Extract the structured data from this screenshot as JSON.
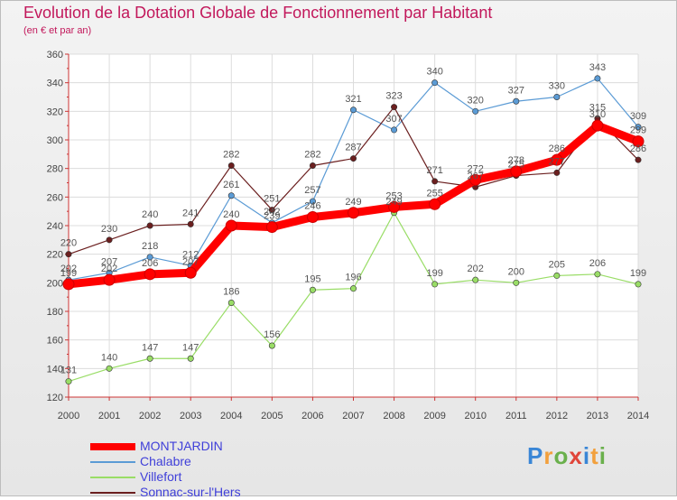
{
  "chart_data": {
    "type": "line",
    "title": "Evolution de la Dotation Globale de Fonctionnement par Habitant",
    "subtitle": "(en € et par an)",
    "xlabel": "",
    "ylabel": "",
    "x": [
      "2000",
      "2001",
      "2002",
      "2003",
      "2004",
      "2005",
      "2006",
      "2007",
      "2008",
      "2009",
      "2010",
      "2011",
      "2012",
      "2013",
      "2014"
    ],
    "ylim": [
      120,
      360
    ],
    "yticks": [
      "120",
      "140",
      "160",
      "180",
      "200",
      "220",
      "240",
      "260",
      "280",
      "300",
      "320",
      "340",
      "360"
    ],
    "grid": true,
    "legend_position": "bottom-left",
    "series": [
      {
        "name": "MONTJARDIN",
        "color": "#ff0000",
        "values": [
          199,
          202,
          206,
          207,
          240,
          239,
          246,
          249,
          253,
          255,
          272,
          278,
          286,
          310,
          299
        ],
        "labels": [
          "199",
          "202",
          "206",
          "207",
          "240",
          "239",
          "246",
          "249",
          "253",
          "255",
          "272",
          "278",
          "286",
          "310",
          "299"
        ]
      },
      {
        "name": "Chalabre",
        "color": "#5b9bd5",
        "values": [
          202,
          207,
          218,
          212,
          261,
          242,
          257,
          321,
          307,
          340,
          320,
          327,
          330,
          343,
          309
        ],
        "labels": [
          "202",
          "207",
          "218",
          "212",
          "261",
          "242",
          "257",
          "321",
          "307",
          "340",
          "320",
          "327",
          "330",
          "343",
          "309"
        ]
      },
      {
        "name": "Villefort",
        "color": "#99dd66",
        "values": [
          131,
          140,
          147,
          147,
          186,
          156,
          195,
          196,
          249,
          199,
          202,
          200,
          205,
          206,
          199
        ],
        "labels": [
          "131",
          "140",
          "147",
          "147",
          "186",
          "156",
          "195",
          "196",
          "249",
          "199",
          "202",
          "200",
          "205",
          "206",
          "199"
        ]
      },
      {
        "name": "Sonnac-sur-l'Hers",
        "color": "#6b1f1f",
        "values": [
          220,
          230,
          240,
          241,
          282,
          251,
          282,
          287,
          323,
          271,
          267,
          275,
          277,
          315,
          286
        ],
        "labels": [
          "220",
          "230",
          "240",
          "241",
          "282",
          "251",
          "282",
          "287",
          "323",
          "271",
          "267",
          "275",
          "277",
          "315",
          "286"
        ]
      }
    ]
  },
  "brand": {
    "letters": [
      "P",
      "r",
      "o",
      "x",
      "i",
      "t",
      "i"
    ],
    "colors": [
      "#3a86d6",
      "#f2a03d",
      "#6ab04c",
      "#e0453a",
      "#3a86d6",
      "#f2a03d",
      "#6ab04c"
    ]
  }
}
